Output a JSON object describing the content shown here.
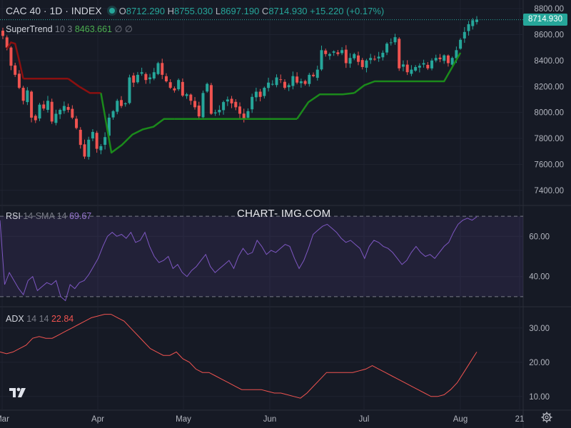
{
  "header": {
    "title": "CAC 40 · 1D · INDEX",
    "open_label": "O",
    "open_value": "8712.290",
    "high_label": "H",
    "high_value": "8755.030",
    "low_label": "L",
    "low_value": "8697.190",
    "close_label": "C",
    "close_value": "8714.930",
    "change": "+15.220 (+0.17%)"
  },
  "supertrend": {
    "name": "SuperTrend",
    "params": "10 3",
    "value": "8463.661",
    "extra1": "∅",
    "extra2": "∅"
  },
  "rsi_panel": {
    "name": "RSI",
    "params": "14 SMA 14",
    "value": "69.67"
  },
  "adx_panel": {
    "name": "ADX",
    "params": "14 14",
    "value": "22.84"
  },
  "watermark": "CHART- IMG.COM",
  "last_price_label": "8714.930",
  "colors": {
    "up": "#26a69a",
    "down": "#ef5350",
    "supertrend_up": "#1b8a1b",
    "supertrend_down": "#8b1010",
    "rsi": "#7e57c2",
    "adx": "#f05350",
    "background": "#161a25"
  },
  "icons": {
    "logo": "tradingview-logo-icon",
    "settings": "gear-icon"
  },
  "chart_data": [
    {
      "type": "candlestick",
      "title": "CAC 40 · 1D · INDEX",
      "ylim": [
        7300,
        8850
      ],
      "y_ticks": [
        "7400.00",
        "7600.00",
        "7800.00",
        "8000.00",
        "8200.00",
        "8400.00",
        "8600.00",
        "8800.00"
      ],
      "x_ticks": [
        "Mar",
        "Apr",
        "May",
        "Jun",
        "Jul",
        "Aug",
        "21"
      ],
      "close_series": [
        8590,
        8500,
        8360,
        8290,
        8190,
        8090,
        8170,
        7960,
        7940,
        8060,
        8030,
        8090,
        7930,
        7990,
        8020,
        8050,
        8020,
        7960,
        7880,
        7750,
        7660,
        7790,
        7850,
        7720,
        7740,
        7810,
        7960,
        8010,
        8090,
        8050,
        8070,
        8270,
        8230,
        8290,
        8310,
        8250,
        8270,
        8310,
        8380,
        8290,
        8240,
        8190,
        8170,
        8250,
        8130,
        8140,
        8090,
        8040,
        7970,
        8150,
        8220,
        7990,
        8000,
        8020,
        8080,
        8100,
        8070,
        8040,
        7990,
        7950,
        8010,
        8120,
        8160,
        8120,
        8190,
        8230,
        8220,
        8270,
        8250,
        8190,
        8210,
        8280,
        8230,
        8240,
        8220,
        8290,
        8280,
        8330,
        8480,
        8450,
        8450,
        8470,
        8450,
        8480,
        8380,
        8420,
        8450,
        8390,
        8350,
        8400,
        8420,
        8410,
        8430,
        8460,
        8530,
        8540,
        8580,
        8340,
        8370,
        8310,
        8330,
        8350,
        8360,
        8380,
        8340,
        8400,
        8420,
        8410,
        8440,
        8380,
        8420,
        8480,
        8560,
        8620,
        8680,
        8710,
        8715
      ],
      "supertrend": {
        "value": 8463.661,
        "down_segments": [
          {
            "start": 1,
            "end": 5,
            "values": [
              8490,
              8540,
              8530,
              8400,
              8260
            ]
          },
          {
            "start": 5,
            "end": 16,
            "values": [
              8260,
              8260,
              8260,
              8260,
              8260
            ]
          },
          {
            "start": 16,
            "end": 24,
            "values": [
              8260,
              8200,
              8150,
              8150
            ]
          }
        ],
        "up_segments": [
          {
            "start": 24,
            "end": 42,
            "values": [
              8150,
              7690,
              7750,
              7830,
              7870,
              7890,
              7950,
              7950
            ]
          },
          {
            "start": 42,
            "end": 72,
            "values": [
              7950,
              7950,
              7950,
              7950,
              7950
            ]
          },
          {
            "start": 72,
            "end": 86,
            "values": [
              7950,
              8080,
              8140,
              8140,
              8140,
              8150
            ]
          },
          {
            "start": 86,
            "end": 96,
            "values": [
              8150,
              8210,
              8240,
              8240,
              8240
            ]
          },
          {
            "start": 96,
            "end": 112,
            "values": [
              8240,
              8240,
              8240,
              8240,
              8460
            ]
          }
        ]
      }
    },
    {
      "type": "line",
      "title": "RSI 14 SMA 14",
      "ylim": [
        25,
        75
      ],
      "y_ticks": [
        "40.00",
        "60.00"
      ],
      "band": [
        30,
        70
      ],
      "values": [
        68,
        36,
        42,
        38,
        34,
        31,
        38,
        40,
        33,
        35,
        37,
        36,
        38,
        30,
        28,
        36,
        34,
        37,
        38,
        41,
        45,
        49,
        55,
        60,
        62,
        60,
        61,
        59,
        62,
        57,
        58,
        62,
        55,
        50,
        47,
        48,
        50,
        44,
        46,
        42,
        40,
        43,
        45,
        48,
        51,
        45,
        42,
        44,
        46,
        48,
        44,
        50,
        54,
        51,
        52,
        58,
        55,
        51,
        53,
        52,
        54,
        56,
        55,
        49,
        44,
        48,
        54,
        61,
        63,
        65,
        66,
        64,
        62,
        59,
        57,
        58,
        56,
        54,
        49,
        55,
        58,
        57,
        55,
        54,
        52,
        49,
        46,
        48,
        52,
        55,
        52,
        50,
        51,
        49,
        52,
        55,
        57,
        62,
        66,
        68,
        69,
        68,
        69.67
      ]
    },
    {
      "type": "line",
      "title": "ADX 14 14",
      "ylim": [
        6,
        36
      ],
      "y_ticks": [
        "10.00",
        "20.00",
        "30.00"
      ],
      "values": [
        23,
        22.5,
        23,
        24,
        25,
        27,
        27.5,
        27,
        27,
        28,
        29,
        30,
        31,
        32,
        33,
        33.5,
        34,
        34,
        33,
        32,
        30,
        28,
        26,
        24,
        23,
        22,
        22,
        23,
        21,
        20,
        18,
        17,
        17,
        16,
        15,
        14,
        13,
        12,
        12,
        12,
        12,
        11.5,
        11,
        11,
        10.5,
        10,
        9.5,
        11,
        13,
        15,
        17,
        17,
        17,
        17,
        17,
        17.5,
        18,
        19,
        18,
        17,
        16,
        15,
        14,
        13,
        12,
        11,
        10,
        10,
        10.5,
        12,
        14,
        17,
        20,
        23
      ]
    }
  ]
}
